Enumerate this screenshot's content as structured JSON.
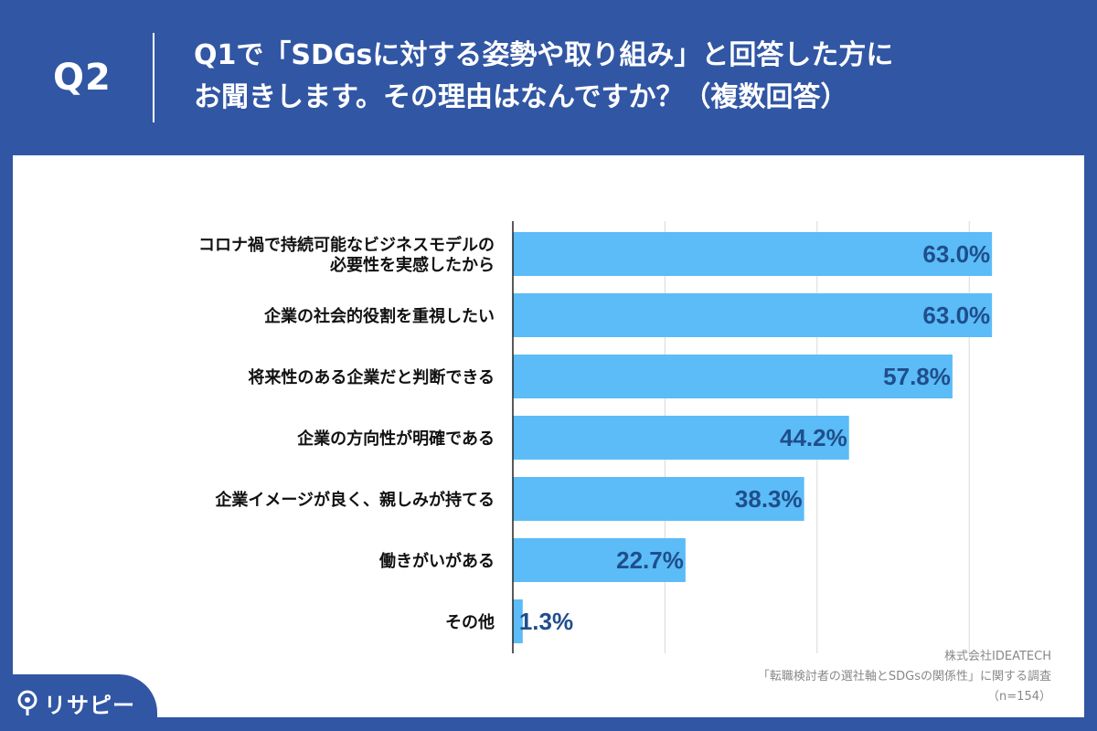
{
  "header": {
    "question_number": "Q2",
    "question_line1": "Q1で「SDGsに対する姿勢や取り組み」と回答した方に",
    "question_line2": "お聞きします。その理由はなんですか？（複数回答）"
  },
  "credits": {
    "company": "株式会社IDEATECH",
    "survey": "「転職検討者の選社軸とSDGsの関係性」に関する調査",
    "sample": "（n=154）"
  },
  "logo": {
    "text": "リサピー",
    "icon": "location-pin-icon"
  },
  "colors": {
    "background": "#3156a4",
    "bar": "#5bbcf7",
    "value_text": "#1f4e8c"
  },
  "chart_data": {
    "type": "bar",
    "orientation": "horizontal",
    "title": "",
    "xlabel": "",
    "ylabel": "",
    "xlim": [
      0,
      100
    ],
    "grid": true,
    "categories": [
      [
        "コロナ禍で持続可能なビジネスモデルの",
        "必要性を実感したから"
      ],
      [
        "企業の社会的役割を重視したい"
      ],
      [
        "将来性のある企業だと判断できる"
      ],
      [
        "企業の方向性が明確である"
      ],
      [
        "企業イメージが良く、親しみが持てる"
      ],
      [
        "働きがいがある"
      ],
      [
        "その他"
      ]
    ],
    "values": [
      63.0,
      63.0,
      57.8,
      44.2,
      38.3,
      22.7,
      1.3
    ],
    "value_labels": [
      "63.0%",
      "63.0%",
      "57.8%",
      "44.2%",
      "38.3%",
      "22.7%",
      "1.3%"
    ]
  }
}
